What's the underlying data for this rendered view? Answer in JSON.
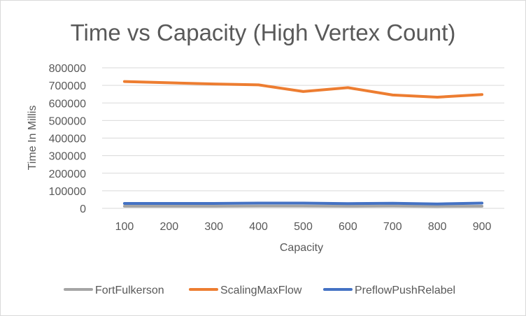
{
  "chart_data": {
    "type": "line",
    "title": "Time vs Capacity (High Vertex Count)",
    "xlabel": "Capacity",
    "ylabel": "Time In Millis",
    "categories": [
      "100",
      "200",
      "300",
      "400",
      "500",
      "600",
      "700",
      "800",
      "900"
    ],
    "yticks": [
      "0",
      "100000",
      "200000",
      "300000",
      "400000",
      "500000",
      "600000",
      "700000",
      "800000"
    ],
    "ylim": [
      0,
      800000
    ],
    "grid": true,
    "legend_position": "bottom",
    "series": [
      {
        "name": "FortFulkerson",
        "color": "#a5a5a5",
        "values": [
          12000,
          12000,
          12000,
          13000,
          13000,
          12000,
          13000,
          11000,
          12000
        ]
      },
      {
        "name": "ScalingMaxFlow",
        "color": "#ed7d31",
        "values": [
          722000,
          715000,
          708000,
          703000,
          665000,
          687000,
          645000,
          633000,
          648000
        ]
      },
      {
        "name": "PreflowPushRelabel",
        "color": "#4472c4",
        "values": [
          28000,
          28000,
          28000,
          30000,
          30000,
          27000,
          29000,
          25000,
          30000
        ]
      }
    ]
  }
}
